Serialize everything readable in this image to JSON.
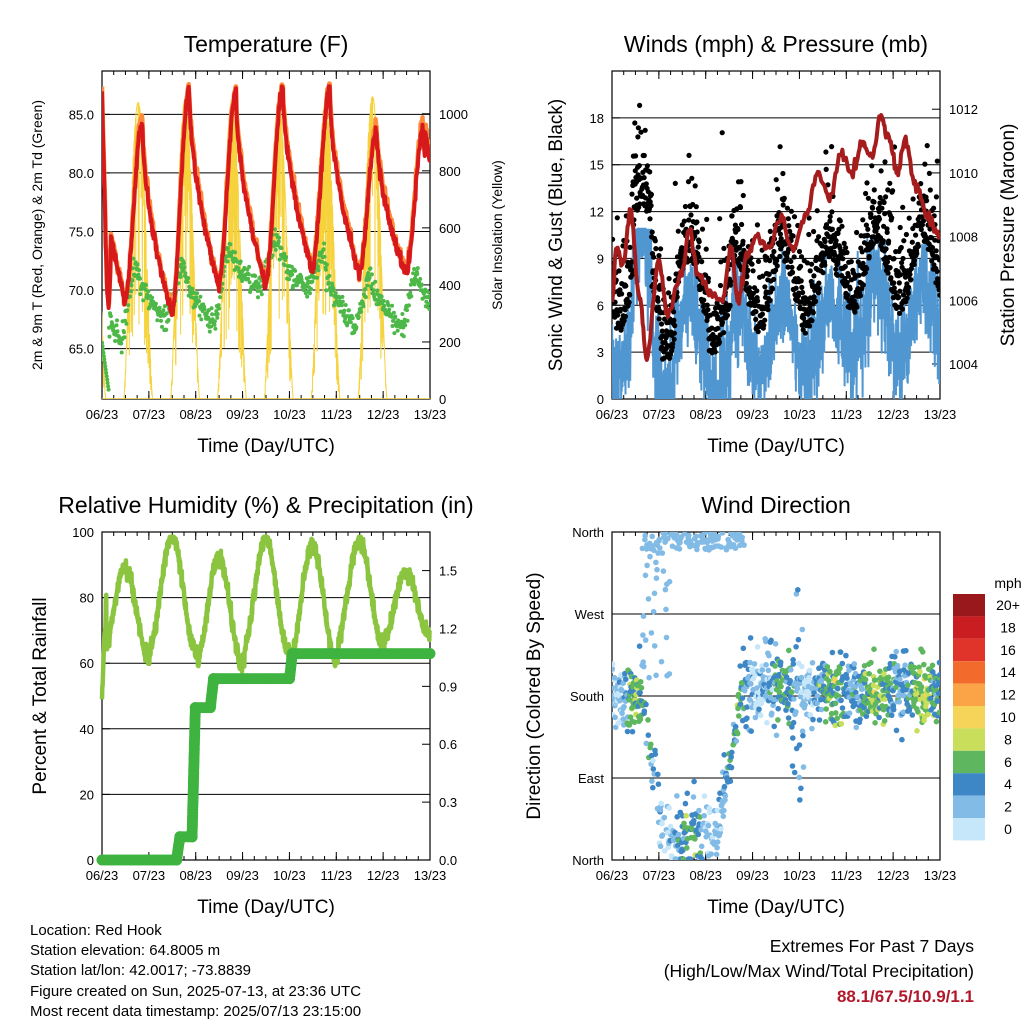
{
  "chart_data": [
    {
      "type": "line",
      "title": "Temperature (F)",
      "xlabel": "Time (Day/UTC)",
      "ylabel": "2m & 9m T (Red, Orange) & 2m Td (Green)",
      "y2label": "Solar Insolation (Yellow)",
      "x_ticks": [
        "06/23",
        "07/23",
        "08/23",
        "09/23",
        "10/23",
        "11/23",
        "12/23",
        "13/23"
      ],
      "xlim": [
        6.958,
        13.958
      ],
      "ylim": [
        60.7,
        88.7
      ],
      "y_ticks": [
        "65.0",
        "70.0",
        "75.0",
        "80.0",
        "85.0"
      ],
      "y2lim": [
        0,
        1150
      ],
      "y2_ticks": [
        "0",
        "200",
        "400",
        "600",
        "800",
        "1000"
      ],
      "grid": true,
      "series": [
        {
          "color": "#d7191c",
          "daily_min": [
            72.0,
            69.2,
            68.0,
            70.5,
            70.6,
            71.8,
            71.5
          ],
          "daily_max": [
            87.9,
            84.3,
            87.2,
            86.9,
            87.4,
            87.1,
            83.7
          ],
          "start": 87.0,
          "end": 81.0,
          "dip_min": 68.3
        },
        {
          "color": "#fd8d3c",
          "offset": 0.6
        },
        {
          "color": "#4db848",
          "daily_min": [
            61.5,
            65.5,
            67.5,
            67.3,
            70.2,
            70.0,
            66.8
          ],
          "daily_max": [
            75.5,
            72.0,
            72.3,
            73.5,
            74.5,
            73.2,
            71.5
          ],
          "start": 65.5,
          "end": 70.0
        },
        {
          "color": "#f6d23c",
          "axis": "y2",
          "daily_peak": [
            1000,
            1040,
            1050,
            1050,
            1040,
            1040,
            1060
          ]
        }
      ]
    },
    {
      "type": "scatter",
      "title": "Winds (mph) & Pressure (mb)",
      "xlabel": "Time (Day/UTC)",
      "ylabel": "Sonic Wind & Gust (Blue, Black)",
      "y2label": "Station Pressure (Maroon)",
      "x_ticks": [
        "06/23",
        "07/23",
        "08/23",
        "09/23",
        "10/23",
        "11/23",
        "12/23",
        "13/23"
      ],
      "xlim": [
        6.958,
        13.958
      ],
      "ylim": [
        0,
        21
      ],
      "y_ticks": [
        "0",
        "3",
        "6",
        "9",
        "12",
        "15",
        "18"
      ],
      "y2lim": [
        1002.9,
        1013.2
      ],
      "y2_ticks": [
        "1004",
        "1006",
        "1008",
        "1010",
        "1012"
      ],
      "grid": true,
      "series": [
        {
          "color": "#5096d0",
          "kind": "wind_mean_mph",
          "range": [
            0,
            10.9
          ]
        },
        {
          "color": "#000000",
          "kind": "gust_mph",
          "range": [
            1,
            18.8
          ]
        },
        {
          "color": "#a51c1c",
          "kind": "pressure_mb",
          "range": [
            1003.8,
            1011.8
          ],
          "start": 1006.0,
          "end": 1008.0
        }
      ]
    },
    {
      "type": "line",
      "title": "Relative Humidity (%) & Precipitation (in)",
      "xlabel": "Time (Day/UTC)",
      "ylabel": "Percent & Total Rainfall",
      "x_ticks": [
        "06/23",
        "07/23",
        "08/23",
        "09/23",
        "10/23",
        "11/23",
        "12/23",
        "13/23"
      ],
      "xlim": [
        6.958,
        13.958
      ],
      "ylim": [
        0,
        100
      ],
      "y_ticks": [
        "0",
        "20",
        "40",
        "60",
        "80",
        "100"
      ],
      "y2lim": [
        0,
        1.7
      ],
      "y2_ticks": [
        "0.0",
        "0.3",
        "0.6",
        "0.9",
        "1.2",
        "1.5"
      ],
      "grid": true,
      "series": [
        {
          "color": "#8bc540",
          "kind": "relative_humidity_pct",
          "range": [
            50,
            98.5
          ]
        },
        {
          "color": "#3fb33f",
          "kind": "cumulative_precip_in",
          "steps": [
            [
              6.958,
              0
            ],
            [
              8.55,
              0
            ],
            [
              8.62,
              0.12
            ],
            [
              8.88,
              0.12
            ],
            [
              8.95,
              0.79
            ],
            [
              9.27,
              0.79
            ],
            [
              9.34,
              0.94
            ],
            [
              10.96,
              0.94
            ],
            [
              11.02,
              1.07
            ],
            [
              13.958,
              1.07
            ]
          ]
        }
      ]
    },
    {
      "type": "scatter",
      "title": "Wind Direction",
      "xlabel": "Time (Day/UTC)",
      "ylabel": "Direction (Colored By Speed)",
      "x_ticks": [
        "06/23",
        "07/23",
        "08/23",
        "09/23",
        "10/23",
        "11/23",
        "12/23",
        "13/23"
      ],
      "xlim": [
        6.958,
        13.958
      ],
      "y_ticks": [
        "North",
        "East",
        "South",
        "West",
        "North"
      ],
      "ylim": [
        0,
        360
      ],
      "grid": true,
      "legend": {
        "title": "mph",
        "placement": "right",
        "labels": [
          "20+",
          "18",
          "16",
          "14",
          "12",
          "10",
          "8",
          "6",
          "4",
          "2",
          "0"
        ],
        "colors": [
          "#99181b",
          "#c91d21",
          "#e0342a",
          "#f26b2d",
          "#fba447",
          "#f6d459",
          "#c9df5b",
          "#5eb65f",
          "#3e87c6",
          "#82bbe6",
          "#c6e6f9"
        ]
      }
    }
  ],
  "info": {
    "location": "Location: Red Hook",
    "elevation": "Station elevation: 64.8005 m",
    "latlon": "Station lat/lon: 42.0017; -73.8839",
    "created": "Figure created on Sun, 2025-07-13, at 23:36 UTC",
    "recent": "Most recent data timestamp: 2025/07/13 23:15:00"
  },
  "extremes": {
    "title": "Extremes For Past 7 Days",
    "subtitle": "(High/Low/Max Wind/Total Precipitation)",
    "values": "88.1/67.5/10.9/1.1"
  }
}
